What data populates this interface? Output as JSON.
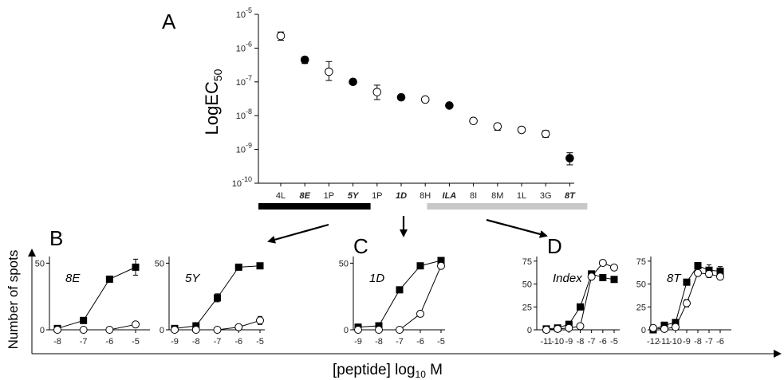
{
  "labels": {
    "panel_a": "A",
    "panel_b": "B",
    "panel_c": "C",
    "panel_d": "D",
    "main_ylabel": "LogEC",
    "main_ylabel_sub": "50",
    "outer_ylabel": "Number of spots",
    "outer_xlabel_a": "[peptide] log",
    "outer_xlabel_sub": "10",
    "outer_xlabel_b": " M"
  },
  "colors": {
    "accent": "#000000",
    "group_bar_black": "#000000",
    "group_bar_gray": "#c8c8c8"
  },
  "chart_data": [
    {
      "id": "A",
      "type": "scatter",
      "yscale": "log",
      "ylim": [
        1e-10,
        1e-05
      ],
      "yticks": [
        {
          "v": -5,
          "base": "10",
          "exp": "-5"
        },
        {
          "v": -6,
          "base": "10",
          "exp": "-6"
        },
        {
          "v": -7,
          "base": "10",
          "exp": "-7"
        },
        {
          "v": -8,
          "base": "10",
          "exp": "-8"
        },
        {
          "v": -9,
          "base": "10",
          "exp": "-9"
        },
        {
          "v": -10,
          "base": "10",
          "exp": "-10"
        }
      ],
      "categories": [
        "4L",
        "8E",
        "1P",
        "5Y",
        "1P",
        "1D",
        "8H",
        "ILA",
        "8I",
        "8M",
        "1L",
        "3G",
        "8T"
      ],
      "category_emphasis": [
        false,
        true,
        false,
        true,
        false,
        true,
        false,
        true,
        false,
        false,
        false,
        false,
        true
      ],
      "values": [
        2.3e-06,
        4.5e-07,
        2e-07,
        1e-07,
        5e-08,
        3.5e-08,
        3e-08,
        2e-08,
        7e-09,
        4.8e-09,
        3.8e-09,
        2.9e-09,
        5.5e-10
      ],
      "err_low": [
        1.7e-06,
        3.5e-07,
        1.1e-07,
        1e-07,
        3e-08,
        3.5e-08,
        3e-08,
        2e-08,
        7e-09,
        3.7e-09,
        3.8e-09,
        2.3e-09,
        3.5e-10
      ],
      "err_high": [
        3e-06,
        5.5e-07,
        4e-07,
        1e-07,
        8e-08,
        3.5e-08,
        3e-08,
        2e-08,
        7e-09,
        5.8e-09,
        3.8e-09,
        3.6e-09,
        8e-10
      ],
      "filled": [
        false,
        true,
        false,
        true,
        false,
        true,
        false,
        true,
        false,
        false,
        false,
        false,
        true
      ],
      "groups": [
        {
          "from": 0,
          "to": 3,
          "color": "black"
        },
        {
          "from": 7,
          "to": 12,
          "color": "gray"
        }
      ]
    },
    {
      "id": "B1",
      "type": "line",
      "title": "8E",
      "x": [
        -8,
        -7,
        -6,
        -5
      ],
      "xticks": [
        "-8",
        "-7",
        "-6",
        "-5"
      ],
      "ylim": [
        0,
        55
      ],
      "yticks": [
        "0",
        "50"
      ],
      "series": [
        {
          "marker": "filled-square",
          "values": [
            1,
            7,
            38,
            47
          ],
          "err": [
            0,
            0,
            0,
            6
          ]
        },
        {
          "marker": "open-circle",
          "values": [
            0,
            0,
            0,
            4
          ],
          "err": [
            0,
            0,
            0,
            0
          ]
        }
      ]
    },
    {
      "id": "B2",
      "type": "line",
      "title": "5Y",
      "x": [
        -9,
        -8,
        -7,
        -6,
        -5
      ],
      "xticks": [
        "-9",
        "-8",
        "-7",
        "-6",
        "-5"
      ],
      "ylim": [
        0,
        55
      ],
      "yticks": [
        "0",
        "50"
      ],
      "series": [
        {
          "marker": "filled-square",
          "values": [
            1,
            3,
            24,
            47,
            48
          ],
          "err": [
            0,
            0,
            3,
            0,
            0
          ]
        },
        {
          "marker": "open-circle",
          "values": [
            0,
            0,
            0,
            2,
            7
          ],
          "err": [
            0,
            0,
            0,
            0,
            3
          ]
        }
      ]
    },
    {
      "id": "C",
      "type": "line",
      "title": "1D",
      "x": [
        -9,
        -8,
        -7,
        -6,
        -5
      ],
      "xticks": [
        "-9",
        "-8",
        "-7",
        "-6",
        "-5"
      ],
      "ylim": [
        0,
        55
      ],
      "yticks": [
        "0",
        "50"
      ],
      "series": [
        {
          "marker": "filled-square",
          "values": [
            2,
            3,
            30,
            48,
            52
          ],
          "err": [
            0,
            0,
            0,
            0,
            0
          ]
        },
        {
          "marker": "open-circle",
          "values": [
            0,
            0,
            0,
            12,
            48
          ],
          "err": [
            0,
            0,
            0,
            0,
            0
          ]
        }
      ]
    },
    {
      "id": "D1",
      "type": "line",
      "title": "Index",
      "x": [
        -11,
        -10,
        -9,
        -8,
        -7,
        -6,
        -5
      ],
      "xticks": [
        "-11",
        "-10",
        "-9",
        "-8",
        "-7",
        "-6",
        "-5"
      ],
      "ylim": [
        0,
        80
      ],
      "yticks": [
        "0",
        "25",
        "50",
        "75"
      ],
      "series": [
        {
          "marker": "filled-square",
          "values": [
            1,
            2,
            6,
            25,
            61,
            57,
            55
          ],
          "err": [
            0,
            0,
            0,
            0,
            0,
            0,
            0
          ]
        },
        {
          "marker": "open-circle",
          "values": [
            0,
            1,
            2,
            4,
            58,
            73,
            68
          ],
          "err": [
            0,
            0,
            0,
            0,
            0,
            0,
            0
          ]
        }
      ]
    },
    {
      "id": "D2",
      "type": "line",
      "title": "8T",
      "x": [
        -12,
        -11,
        -10,
        -9,
        -8,
        -7,
        -6
      ],
      "xticks": [
        "-12",
        "-11",
        "-10",
        "-9",
        "-8",
        "-7",
        "-6"
      ],
      "ylim": [
        0,
        80
      ],
      "yticks": [
        "0",
        "25",
        "50",
        "75"
      ],
      "series": [
        {
          "marker": "filled-square",
          "values": [
            0,
            5,
            8,
            52,
            70,
            65,
            64
          ],
          "err": [
            0,
            0,
            0,
            0,
            0,
            6,
            5
          ]
        },
        {
          "marker": "open-circle",
          "values": [
            2,
            1,
            3,
            29,
            62,
            61,
            58
          ],
          "err": [
            0,
            0,
            0,
            4,
            0,
            4,
            0
          ]
        }
      ]
    }
  ]
}
